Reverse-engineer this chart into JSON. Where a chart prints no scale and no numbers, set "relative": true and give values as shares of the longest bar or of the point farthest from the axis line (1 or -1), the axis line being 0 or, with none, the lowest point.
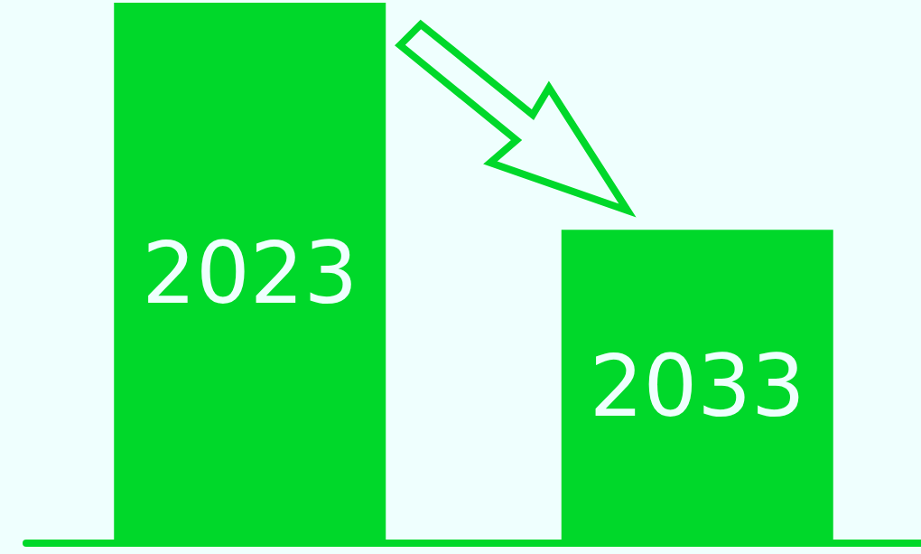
{
  "chart_data": {
    "type": "bar",
    "relative": true,
    "categories": [
      "2023",
      "2033"
    ],
    "values": [
      1,
      0.58
    ],
    "color": "#00d82a"
  }
}
